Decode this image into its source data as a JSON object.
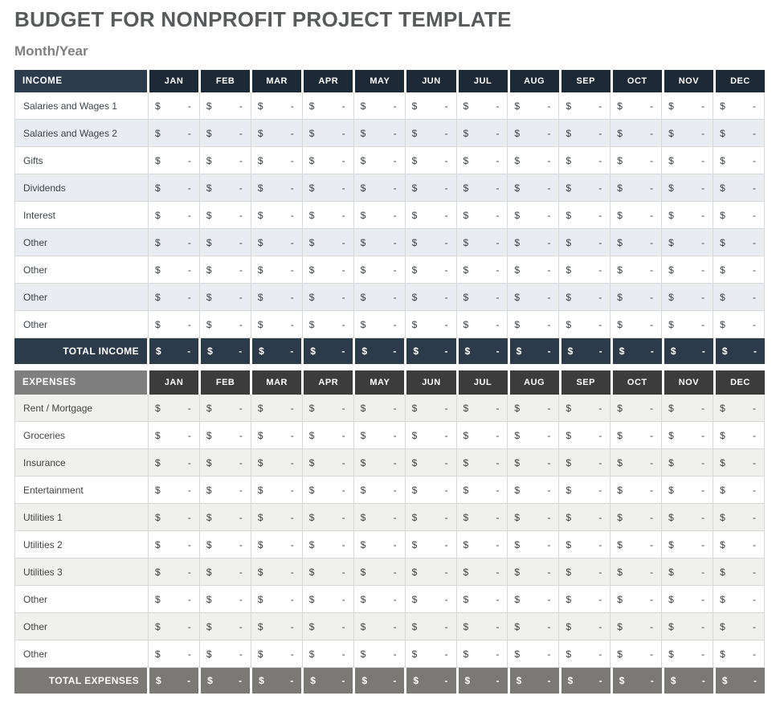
{
  "page": {
    "title": "BUDGET FOR NONPROFIT PROJECT TEMPLATE",
    "subtitle": "Month/Year"
  },
  "months": [
    "JAN",
    "FEB",
    "MAR",
    "APR",
    "MAY",
    "JUN",
    "JUL",
    "AUG",
    "SEP",
    "OCT",
    "NOV",
    "DEC"
  ],
  "cell": {
    "currency_symbol": "$",
    "empty_value": "-"
  },
  "tables": [
    {
      "id": "income",
      "header_label": "INCOME",
      "total_label": "TOTAL INCOME",
      "rows": [
        "Salaries and Wages 1",
        "Salaries and Wages 2",
        "Gifts",
        "Dividends",
        "Interest",
        "Other",
        "Other",
        "Other",
        "Other"
      ],
      "shaded_first_row": false,
      "colors": {
        "header_label_bg": "#2E3B4C",
        "month_header_bg": "#1E2936",
        "total_bg": "#2D3A49",
        "alt_row_bg": "#E9ECF1",
        "body_text": "#3E434B"
      }
    },
    {
      "id": "expenses",
      "header_label": "EXPENSES",
      "total_label": "TOTAL EXPENSES",
      "rows": [
        "Rent / Mortgage",
        "Groceries",
        "Insurance",
        "Entertainment",
        "Utilities 1",
        "Utilities 2",
        "Utilities 3",
        "Other",
        "Other",
        "Other"
      ],
      "shaded_first_row": true,
      "colors": {
        "header_label_bg": "#7F7F7F",
        "month_header_bg": "#3C3C3C",
        "total_bg": "#7B7975",
        "alt_row_bg": "#F0F0EF",
        "body_text": "#434343"
      }
    }
  ],
  "theme": {
    "title_color": "#58595B",
    "subtitle_color": "#7F7F7F",
    "border_color": "#D8D8D8",
    "header_text_color": "#FFFFFF",
    "page_bg": "#FFFFFF"
  }
}
